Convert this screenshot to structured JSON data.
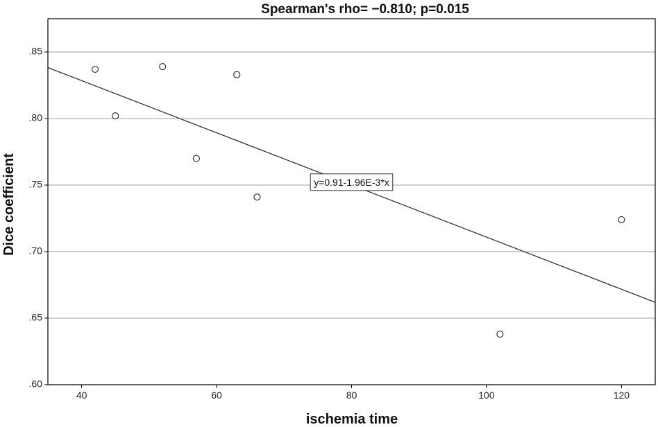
{
  "chart_data": {
    "type": "scatter",
    "title": "Spearman's rho= −0.810; p=0.015",
    "xlabel": "ischemia time",
    "ylabel": "Dice coefficient",
    "xlim": [
      35,
      125
    ],
    "ylim": [
      0.6,
      0.875
    ],
    "x_ticks": [
      40,
      60,
      80,
      100,
      120
    ],
    "x_tick_labels": [
      "40",
      "60",
      "80",
      "100",
      "120"
    ],
    "y_ticks": [
      0.6,
      0.65,
      0.7,
      0.75,
      0.8,
      0.85
    ],
    "y_tick_labels": [
      ".60",
      ".65",
      ".70",
      ".75",
      ".80",
      ".85"
    ],
    "grid": "horizontal",
    "points": [
      {
        "x": 42,
        "y": 0.837
      },
      {
        "x": 45,
        "y": 0.802
      },
      {
        "x": 52,
        "y": 0.839
      },
      {
        "x": 57,
        "y": 0.77
      },
      {
        "x": 63,
        "y": 0.833
      },
      {
        "x": 66,
        "y": 0.741
      },
      {
        "x": 102,
        "y": 0.638
      },
      {
        "x": 120,
        "y": 0.724
      }
    ],
    "fit_line": {
      "intercept": 0.9069,
      "slope": -0.00196,
      "label": "y=0.91-1.96E-3*x",
      "label_anchor": {
        "x": 80,
        "y": 0.7515
      }
    },
    "colors": {
      "axis": "#000000",
      "grid": "#bdbdbd",
      "point_stroke": "#333333",
      "fit_line": "#333333",
      "background": "#ffffff"
    }
  }
}
